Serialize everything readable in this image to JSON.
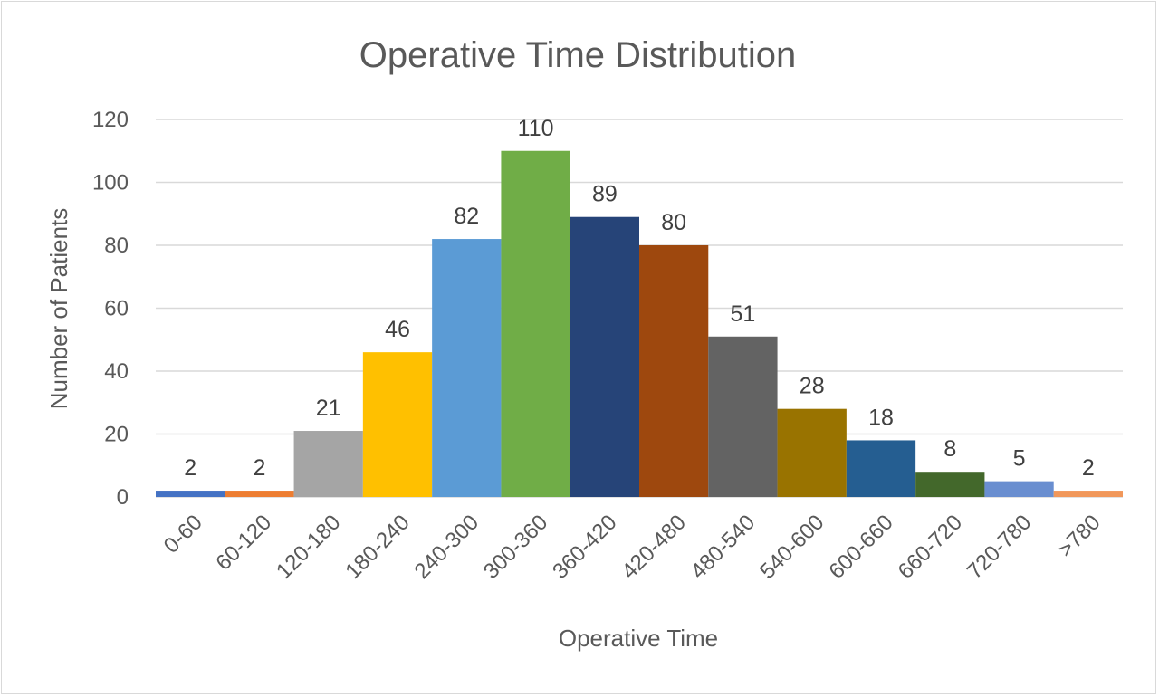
{
  "chart_data": {
    "type": "bar",
    "title": "Operative Time Distribution",
    "xlabel": "Operative Time",
    "ylabel": "Number of Patients",
    "categories": [
      "0-60",
      "60-120",
      "120-180",
      "180-240",
      "240-300",
      "300-360",
      "360-420",
      "420-480",
      "480-540",
      "540-600",
      "600-660",
      "660-720",
      "720-780",
      ">780"
    ],
    "values": [
      2,
      2,
      21,
      46,
      82,
      110,
      89,
      80,
      51,
      28,
      18,
      8,
      5,
      2
    ],
    "colors": [
      "#4472c4",
      "#ed7d31",
      "#a5a5a5",
      "#ffc000",
      "#5b9bd5",
      "#70ad47",
      "#264478",
      "#9e480e",
      "#636363",
      "#997300",
      "#255e91",
      "#43682b",
      "#698ed0",
      "#f1975a"
    ],
    "ylim": [
      0,
      120
    ],
    "yticks": [
      0,
      20,
      40,
      60,
      80,
      100,
      120
    ],
    "grid": true,
    "legend": "none"
  }
}
